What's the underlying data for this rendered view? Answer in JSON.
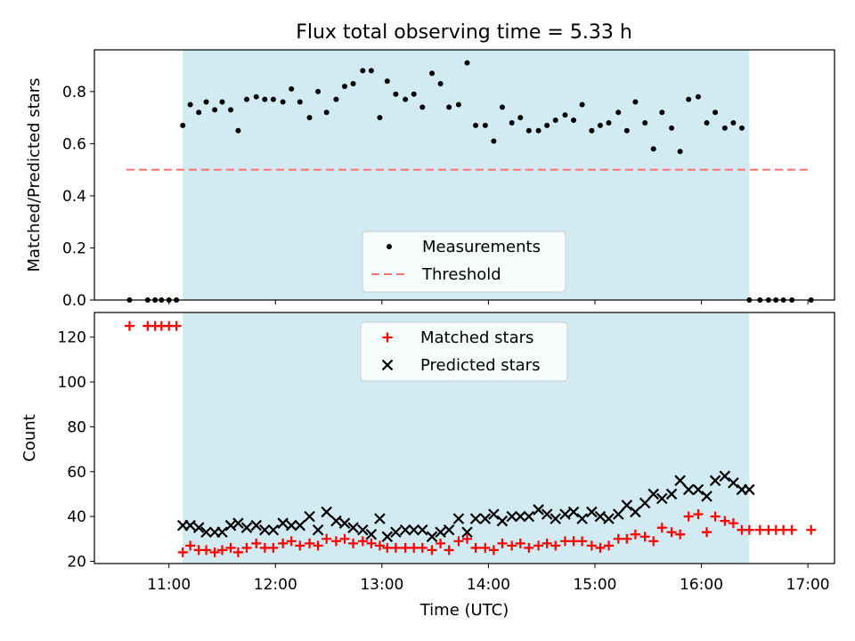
{
  "chart_data": {
    "title": "Flux total observing time = 5.33 h",
    "colors": {
      "shade": "#add8e6",
      "threshold": "#ff7070",
      "measurement": "#000000",
      "matched": "#ff0000",
      "predicted": "#000000"
    },
    "top": {
      "type": "scatter",
      "ylabel": "Matched/Predicted stars",
      "ylim": [
        0,
        0.96
      ],
      "yticks": [
        0.0,
        0.2,
        0.4,
        0.6,
        0.8
      ],
      "ytick_labels": [
        "0.0",
        "0.2",
        "0.4",
        "0.6",
        "0.8"
      ],
      "legend": {
        "position": "lower-center",
        "entries": [
          "Measurements",
          "Threshold"
        ]
      },
      "threshold": {
        "value": 0.5,
        "x_start": 10.6,
        "x_end": 17.04
      },
      "measurements": {
        "x": [
          10.63,
          10.8,
          10.87,
          10.93,
          11.0,
          11.07,
          11.13,
          11.2,
          11.28,
          11.35,
          11.43,
          11.5,
          11.58,
          11.65,
          11.73,
          11.82,
          11.9,
          11.98,
          12.07,
          12.15,
          12.23,
          12.32,
          12.4,
          12.48,
          12.57,
          12.65,
          12.73,
          12.82,
          12.9,
          12.98,
          13.05,
          13.13,
          13.22,
          13.3,
          13.38,
          13.47,
          13.55,
          13.63,
          13.72,
          13.8,
          13.88,
          13.97,
          14.05,
          14.13,
          14.22,
          14.3,
          14.38,
          14.47,
          14.55,
          14.63,
          14.72,
          14.8,
          14.88,
          14.97,
          15.05,
          15.13,
          15.22,
          15.3,
          15.38,
          15.47,
          15.55,
          15.63,
          15.72,
          15.8,
          15.88,
          15.97,
          16.05,
          16.13,
          16.22,
          16.3,
          16.38,
          16.45,
          16.55,
          16.63,
          16.7,
          16.77,
          16.85,
          17.03
        ],
        "y": [
          0.0,
          0.0,
          0.0,
          0.0,
          0.0,
          0.0,
          0.67,
          0.75,
          0.72,
          0.76,
          0.73,
          0.76,
          0.73,
          0.65,
          0.77,
          0.78,
          0.77,
          0.77,
          0.76,
          0.81,
          0.76,
          0.7,
          0.8,
          0.72,
          0.77,
          0.82,
          0.83,
          0.88,
          0.88,
          0.7,
          0.84,
          0.79,
          0.77,
          0.79,
          0.74,
          0.87,
          0.83,
          0.74,
          0.75,
          0.91,
          0.67,
          0.67,
          0.61,
          0.74,
          0.68,
          0.7,
          0.65,
          0.65,
          0.67,
          0.69,
          0.71,
          0.69,
          0.75,
          0.65,
          0.67,
          0.68,
          0.72,
          0.65,
          0.76,
          0.68,
          0.58,
          0.72,
          0.66,
          0.57,
          0.77,
          0.78,
          0.68,
          0.72,
          0.66,
          0.68,
          0.66,
          0.0,
          0.0,
          0.0,
          0.0,
          0.0,
          0.0,
          0.0
        ]
      }
    },
    "bottom": {
      "type": "scatter",
      "ylabel": "Count",
      "ylim": [
        19,
        131
      ],
      "yticks": [
        20,
        40,
        60,
        80,
        100,
        120
      ],
      "ytick_labels": [
        "20",
        "40",
        "60",
        "80",
        "100",
        "120"
      ],
      "legend": {
        "position": "upper-center",
        "entries": [
          "Matched stars",
          "Predicted stars"
        ]
      },
      "matched": {
        "x": [
          10.63,
          10.8,
          10.87,
          10.93,
          11.0,
          11.07,
          11.13,
          11.2,
          11.28,
          11.35,
          11.43,
          11.5,
          11.58,
          11.65,
          11.73,
          11.82,
          11.9,
          11.98,
          12.07,
          12.15,
          12.23,
          12.32,
          12.4,
          12.48,
          12.57,
          12.65,
          12.73,
          12.82,
          12.9,
          12.98,
          13.05,
          13.13,
          13.22,
          13.3,
          13.38,
          13.47,
          13.55,
          13.63,
          13.72,
          13.8,
          13.88,
          13.97,
          14.05,
          14.13,
          14.22,
          14.3,
          14.38,
          14.47,
          14.55,
          14.63,
          14.72,
          14.8,
          14.88,
          14.97,
          15.05,
          15.13,
          15.22,
          15.3,
          15.38,
          15.47,
          15.55,
          15.63,
          15.72,
          15.8,
          15.88,
          15.97,
          16.05,
          16.13,
          16.22,
          16.3,
          16.38,
          16.45,
          16.55,
          16.63,
          16.7,
          16.77,
          16.85,
          17.03
        ],
        "y": [
          125,
          125,
          125,
          125,
          125,
          125,
          24,
          27,
          25,
          25,
          24,
          25,
          26,
          24,
          26,
          28,
          26,
          26,
          28,
          29,
          27,
          28,
          27,
          30,
          29,
          30,
          28,
          29,
          28,
          27,
          26,
          26,
          26,
          26,
          26,
          25,
          28,
          25,
          29,
          30,
          26,
          26,
          25,
          28,
          27,
          28,
          26,
          27,
          28,
          27,
          29,
          29,
          29,
          27,
          26,
          27,
          30,
          30,
          32,
          31,
          29,
          35,
          33,
          32,
          40,
          41,
          33,
          40,
          38,
          37,
          34,
          34,
          34,
          34,
          34,
          34,
          34,
          34
        ]
      },
      "predicted": {
        "x": [
          11.13,
          11.2,
          11.28,
          11.35,
          11.43,
          11.5,
          11.58,
          11.65,
          11.73,
          11.82,
          11.9,
          11.98,
          12.07,
          12.15,
          12.23,
          12.32,
          12.4,
          12.48,
          12.57,
          12.65,
          12.73,
          12.82,
          12.9,
          12.98,
          13.05,
          13.13,
          13.22,
          13.3,
          13.38,
          13.47,
          13.55,
          13.63,
          13.72,
          13.8,
          13.88,
          13.97,
          14.05,
          14.13,
          14.22,
          14.3,
          14.38,
          14.47,
          14.55,
          14.63,
          14.72,
          14.8,
          14.88,
          14.97,
          15.05,
          15.13,
          15.22,
          15.3,
          15.38,
          15.47,
          15.55,
          15.63,
          15.72,
          15.8,
          15.88,
          15.97,
          16.05,
          16.13,
          16.22,
          16.3,
          16.38,
          16.45
        ],
        "y": [
          36,
          36,
          35,
          33,
          33,
          33,
          36,
          37,
          35,
          36,
          34,
          34,
          37,
          36,
          36,
          40,
          34,
          42,
          38,
          37,
          35,
          34,
          32,
          39,
          31,
          33,
          34,
          34,
          34,
          31,
          33,
          34,
          39,
          33,
          39,
          39,
          41,
          38,
          40,
          40,
          40,
          43,
          41,
          39,
          41,
          42,
          39,
          42,
          40,
          39,
          41,
          45,
          42,
          46,
          50,
          48,
          50,
          56,
          52,
          52,
          49,
          56,
          58,
          55,
          52,
          52
        ]
      },
      "xlabel": "Time (UTC)",
      "xlim": [
        10.3,
        17.25
      ],
      "xticks": [
        11,
        12,
        13,
        14,
        15,
        16,
        17
      ],
      "xtick_labels": [
        "11:00",
        "12:00",
        "13:00",
        "14:00",
        "15:00",
        "16:00",
        "17:00"
      ]
    },
    "shaded_span": {
      "x_start": 11.13,
      "x_end": 16.45
    }
  }
}
